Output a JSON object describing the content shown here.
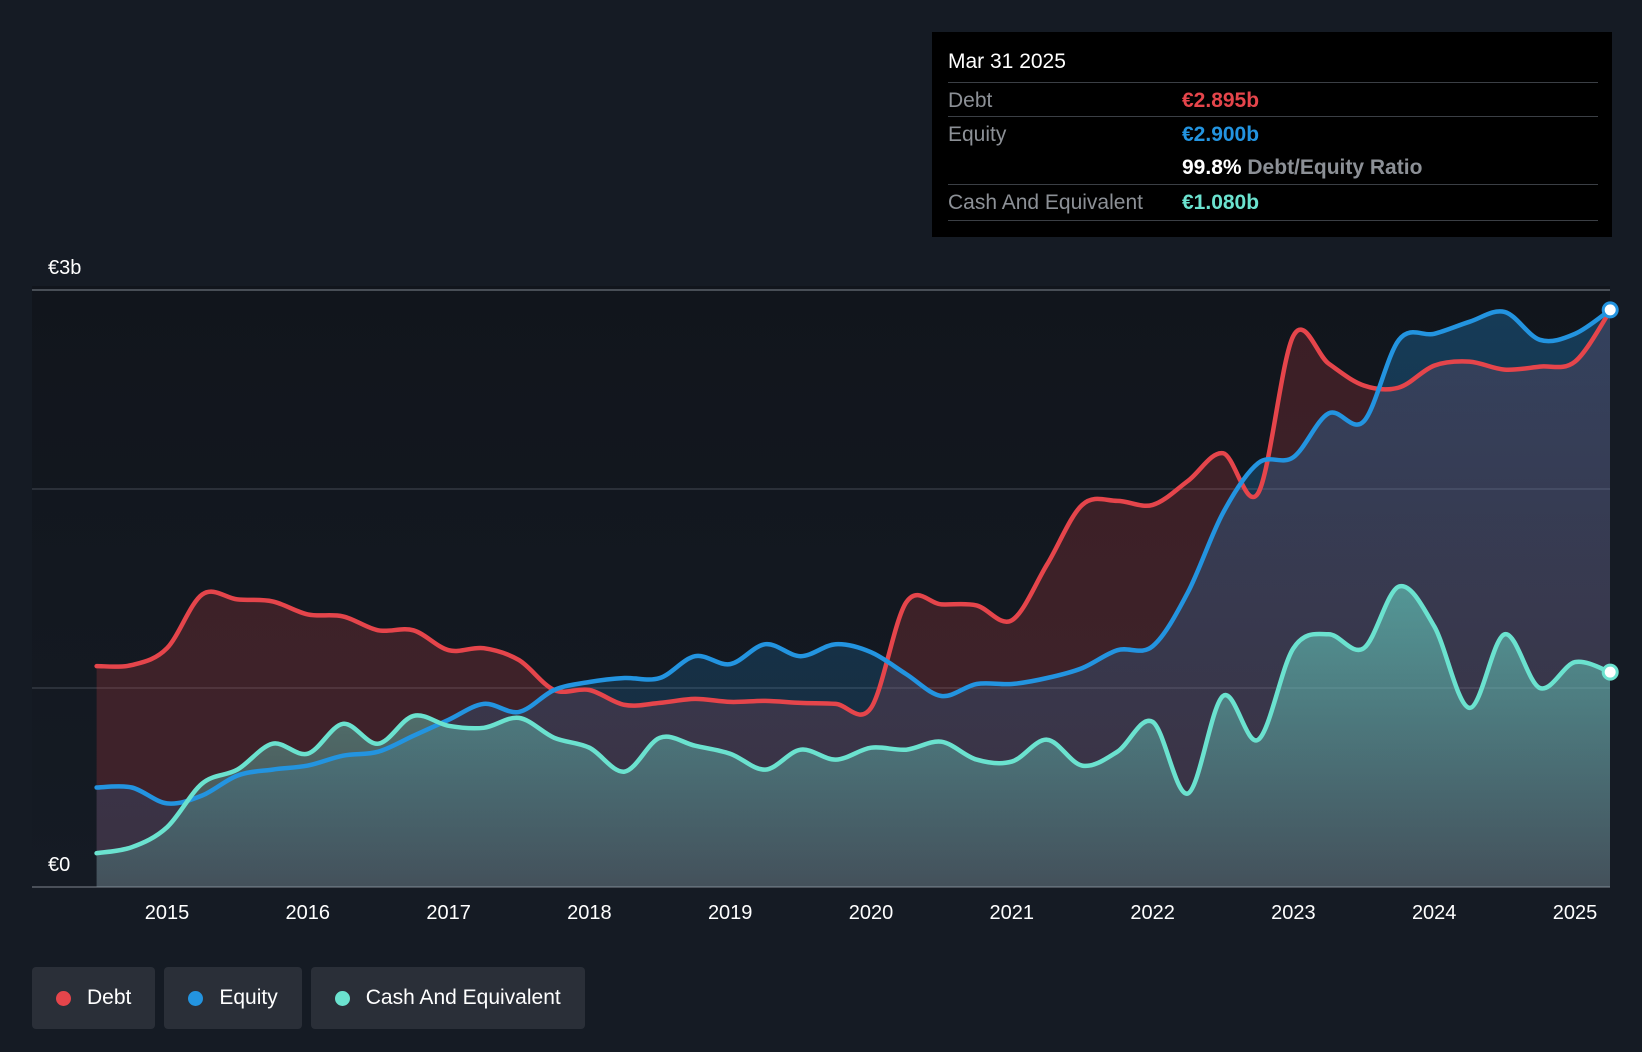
{
  "tooltip": {
    "date": "Mar 31 2025",
    "debt_label": "Debt",
    "debt_value": "€2.895b",
    "equity_label": "Equity",
    "equity_value": "€2.900b",
    "ratio_value": "99.8%",
    "ratio_label": "Debt/Equity Ratio",
    "cash_label": "Cash And Equivalent",
    "cash_value": "€1.080b"
  },
  "legend": {
    "debt": "Debt",
    "equity": "Equity",
    "cash": "Cash And Equivalent"
  },
  "colors": {
    "background": "#151b24",
    "debt": "#e5454b",
    "equity": "#2394e0",
    "cash": "#6be2cf"
  },
  "chart_data": {
    "type": "area",
    "title": "",
    "xlabel": "",
    "ylabel": "",
    "unit": "€b",
    "x_range": [
      2014.5,
      2025.25
    ],
    "ylim": [
      0,
      3
    ],
    "y_tick_labels": [
      {
        "value": 3,
        "label": "€3b"
      },
      {
        "value": 0,
        "label": "€0"
      }
    ],
    "gridlines": [
      1,
      2,
      3
    ],
    "x_ticks": [
      {
        "value": 2015,
        "label": "2015"
      },
      {
        "value": 2016,
        "label": "2016"
      },
      {
        "value": 2017,
        "label": "2017"
      },
      {
        "value": 2018,
        "label": "2018"
      },
      {
        "value": 2019,
        "label": "2019"
      },
      {
        "value": 2020,
        "label": "2020"
      },
      {
        "value": 2021,
        "label": "2021"
      },
      {
        "value": 2022,
        "label": "2022"
      },
      {
        "value": 2023,
        "label": "2023"
      },
      {
        "value": 2024,
        "label": "2024"
      },
      {
        "value": 2025,
        "label": "2025"
      }
    ],
    "series": [
      {
        "name": "Debt",
        "color": "#e5454b",
        "points": [
          [
            2014.5,
            1.11
          ],
          [
            2014.75,
            1.115
          ],
          [
            2015.0,
            1.2
          ],
          [
            2015.25,
            1.47
          ],
          [
            2015.5,
            1.445
          ],
          [
            2015.75,
            1.435
          ],
          [
            2016.0,
            1.37
          ],
          [
            2016.25,
            1.36
          ],
          [
            2016.5,
            1.29
          ],
          [
            2016.75,
            1.29
          ],
          [
            2017.0,
            1.19
          ],
          [
            2017.25,
            1.2
          ],
          [
            2017.5,
            1.14
          ],
          [
            2017.75,
            0.99
          ],
          [
            2018.0,
            0.99
          ],
          [
            2018.25,
            0.915
          ],
          [
            2018.5,
            0.925
          ],
          [
            2018.75,
            0.945
          ],
          [
            2019.0,
            0.93
          ],
          [
            2019.25,
            0.935
          ],
          [
            2019.5,
            0.925
          ],
          [
            2019.75,
            0.92
          ],
          [
            2020.0,
            0.9
          ],
          [
            2020.25,
            1.43
          ],
          [
            2020.5,
            1.42
          ],
          [
            2020.75,
            1.415
          ],
          [
            2021.0,
            1.34
          ],
          [
            2021.25,
            1.62
          ],
          [
            2021.5,
            1.92
          ],
          [
            2021.75,
            1.94
          ],
          [
            2022.0,
            1.92
          ],
          [
            2022.25,
            2.04
          ],
          [
            2022.5,
            2.18
          ],
          [
            2022.75,
            1.98
          ],
          [
            2023.0,
            2.77
          ],
          [
            2023.25,
            2.63
          ],
          [
            2023.5,
            2.52
          ],
          [
            2023.75,
            2.51
          ],
          [
            2024.0,
            2.62
          ],
          [
            2024.25,
            2.64
          ],
          [
            2024.5,
            2.6
          ],
          [
            2024.75,
            2.615
          ],
          [
            2025.0,
            2.64
          ],
          [
            2025.25,
            2.895
          ]
        ]
      },
      {
        "name": "Equity",
        "color": "#2394e0",
        "points": [
          [
            2014.5,
            0.5
          ],
          [
            2014.75,
            0.5
          ],
          [
            2015.0,
            0.42
          ],
          [
            2015.25,
            0.46
          ],
          [
            2015.5,
            0.56
          ],
          [
            2015.75,
            0.59
          ],
          [
            2016.0,
            0.61
          ],
          [
            2016.25,
            0.66
          ],
          [
            2016.5,
            0.68
          ],
          [
            2016.75,
            0.76
          ],
          [
            2017.0,
            0.84
          ],
          [
            2017.25,
            0.92
          ],
          [
            2017.5,
            0.88
          ],
          [
            2017.75,
            0.99
          ],
          [
            2018.0,
            1.03
          ],
          [
            2018.25,
            1.05
          ],
          [
            2018.5,
            1.05
          ],
          [
            2018.75,
            1.16
          ],
          [
            2019.0,
            1.12
          ],
          [
            2019.25,
            1.22
          ],
          [
            2019.5,
            1.16
          ],
          [
            2019.75,
            1.22
          ],
          [
            2020.0,
            1.18
          ],
          [
            2020.25,
            1.07
          ],
          [
            2020.5,
            0.96
          ],
          [
            2020.75,
            1.02
          ],
          [
            2021.0,
            1.02
          ],
          [
            2021.25,
            1.05
          ],
          [
            2021.5,
            1.1
          ],
          [
            2021.75,
            1.19
          ],
          [
            2022.0,
            1.21
          ],
          [
            2022.25,
            1.48
          ],
          [
            2022.5,
            1.88
          ],
          [
            2022.75,
            2.13
          ],
          [
            2023.0,
            2.16
          ],
          [
            2023.25,
            2.38
          ],
          [
            2023.5,
            2.34
          ],
          [
            2023.75,
            2.75
          ],
          [
            2024.0,
            2.78
          ],
          [
            2024.25,
            2.84
          ],
          [
            2024.5,
            2.89
          ],
          [
            2024.75,
            2.75
          ],
          [
            2025.0,
            2.78
          ],
          [
            2025.25,
            2.9
          ]
        ]
      },
      {
        "name": "Cash And Equivalent",
        "color": "#6be2cf",
        "points": [
          [
            2014.5,
            0.17
          ],
          [
            2014.75,
            0.2
          ],
          [
            2015.0,
            0.3
          ],
          [
            2015.25,
            0.52
          ],
          [
            2015.5,
            0.59
          ],
          [
            2015.75,
            0.72
          ],
          [
            2016.0,
            0.67
          ],
          [
            2016.25,
            0.82
          ],
          [
            2016.5,
            0.72
          ],
          [
            2016.75,
            0.86
          ],
          [
            2017.0,
            0.81
          ],
          [
            2017.25,
            0.8
          ],
          [
            2017.5,
            0.85
          ],
          [
            2017.75,
            0.75
          ],
          [
            2018.0,
            0.7
          ],
          [
            2018.25,
            0.58
          ],
          [
            2018.5,
            0.75
          ],
          [
            2018.75,
            0.71
          ],
          [
            2019.0,
            0.67
          ],
          [
            2019.25,
            0.59
          ],
          [
            2019.5,
            0.69
          ],
          [
            2019.75,
            0.64
          ],
          [
            2020.0,
            0.7
          ],
          [
            2020.25,
            0.69
          ],
          [
            2020.5,
            0.73
          ],
          [
            2020.75,
            0.64
          ],
          [
            2021.0,
            0.63
          ],
          [
            2021.25,
            0.74
          ],
          [
            2021.5,
            0.61
          ],
          [
            2021.75,
            0.68
          ],
          [
            2022.0,
            0.83
          ],
          [
            2022.25,
            0.47
          ],
          [
            2022.5,
            0.96
          ],
          [
            2022.75,
            0.74
          ],
          [
            2023.0,
            1.2
          ],
          [
            2023.25,
            1.27
          ],
          [
            2023.5,
            1.2
          ],
          [
            2023.75,
            1.51
          ],
          [
            2024.0,
            1.31
          ],
          [
            2024.25,
            0.9
          ],
          [
            2024.5,
            1.27
          ],
          [
            2024.75,
            1.0
          ],
          [
            2025.0,
            1.13
          ],
          [
            2025.25,
            1.08
          ]
        ]
      }
    ]
  }
}
